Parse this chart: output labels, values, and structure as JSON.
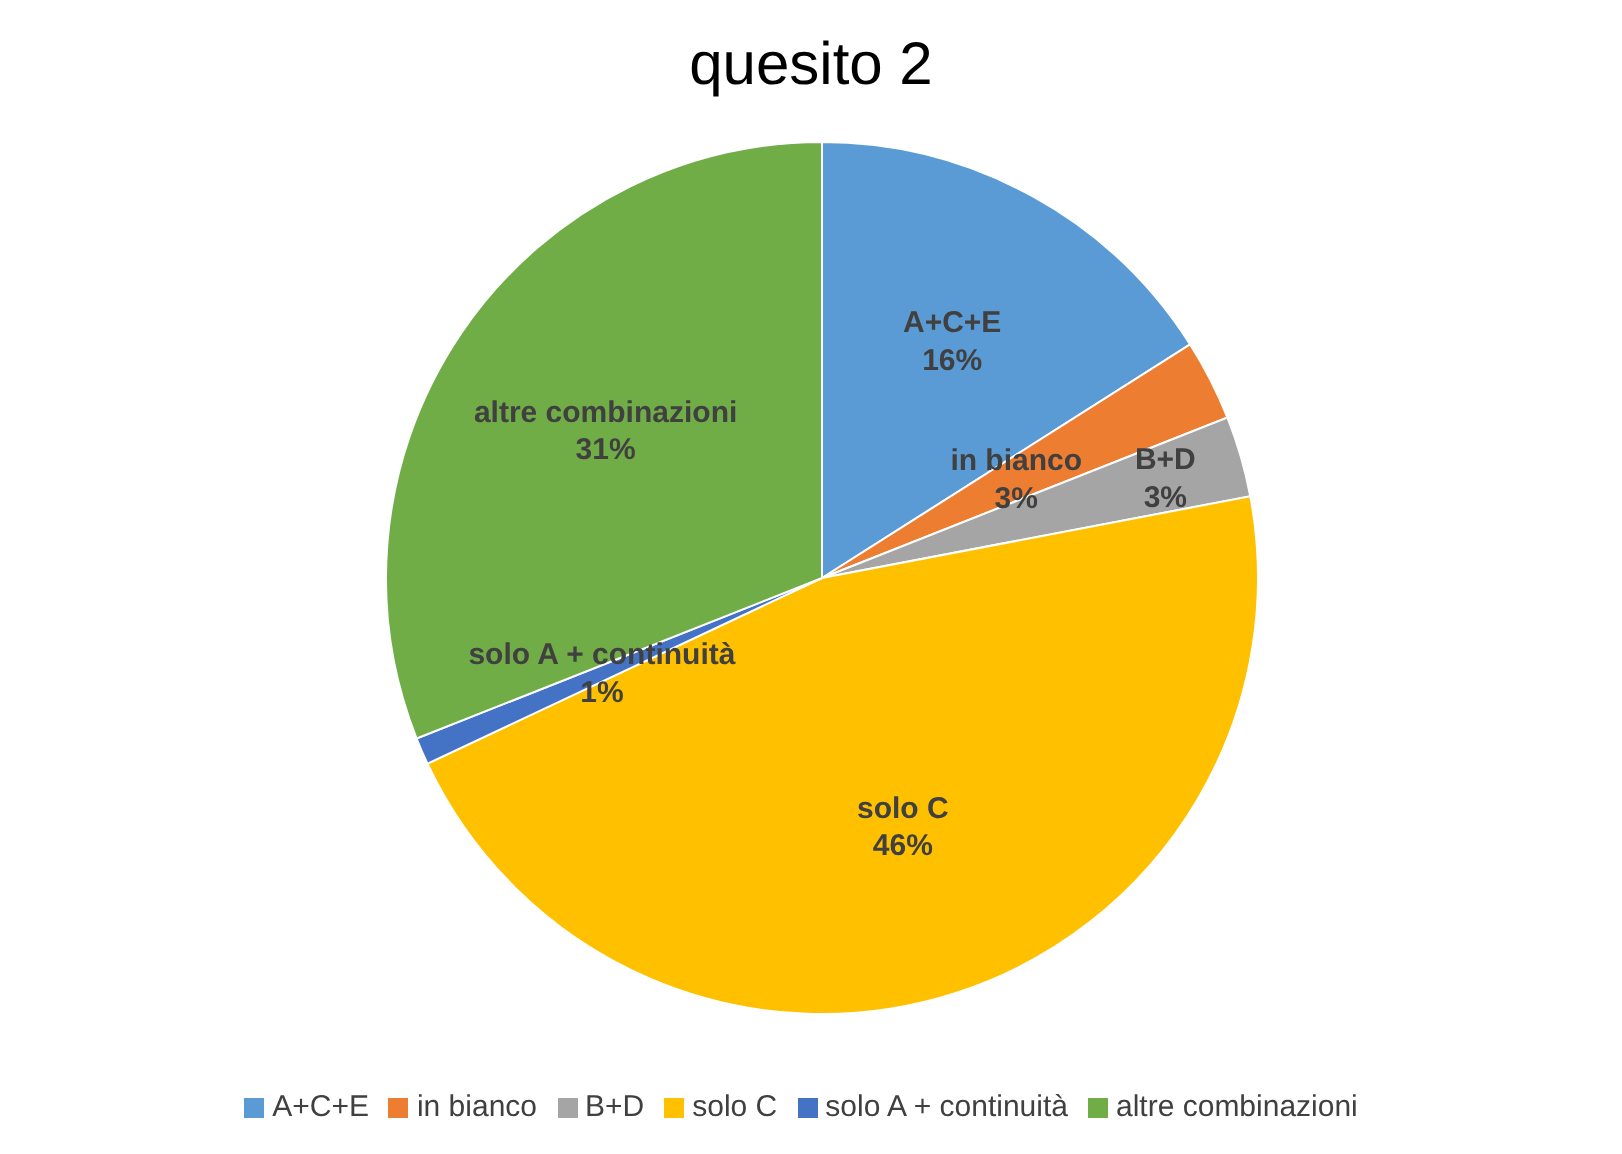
{
  "chart_data": {
    "type": "pie",
    "title": "quesito 2",
    "categories": [
      "A+C+E",
      "in bianco",
      "B+D",
      "solo C",
      "solo A + continuità",
      "altre combinazioni"
    ],
    "values": [
      16,
      3,
      3,
      46,
      1,
      31
    ],
    "value_labels": [
      "16%",
      "3%",
      "3%",
      "46%",
      "1%",
      "31%"
    ],
    "colors": [
      "#5b9bd5",
      "#ed7d31",
      "#a5a5a5",
      "#ffc000",
      "#4472c4",
      "#70ad47"
    ],
    "legend": "bottom"
  }
}
